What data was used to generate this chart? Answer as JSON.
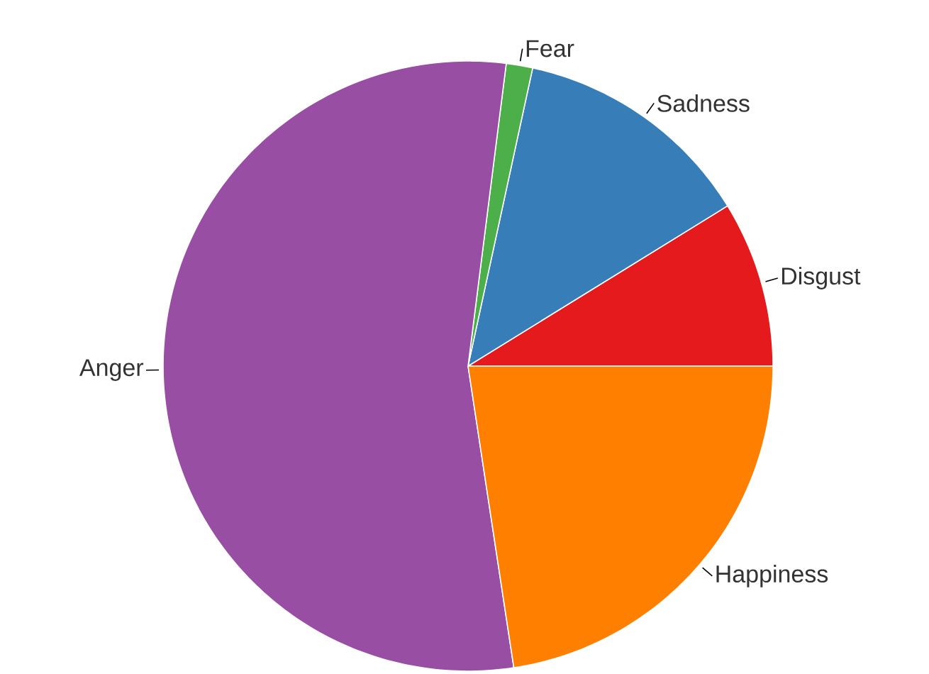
{
  "chart_data": {
    "type": "pie",
    "categories": [
      "Disgust",
      "Sadness",
      "Fear",
      "Anger",
      "Happiness"
    ],
    "values": [
      8.8,
      12.8,
      1.4,
      54.4,
      22.6
    ],
    "colors": [
      "#e41a1c",
      "#377eb8",
      "#4daf4a",
      "#984ea3",
      "#ff7f00"
    ]
  }
}
